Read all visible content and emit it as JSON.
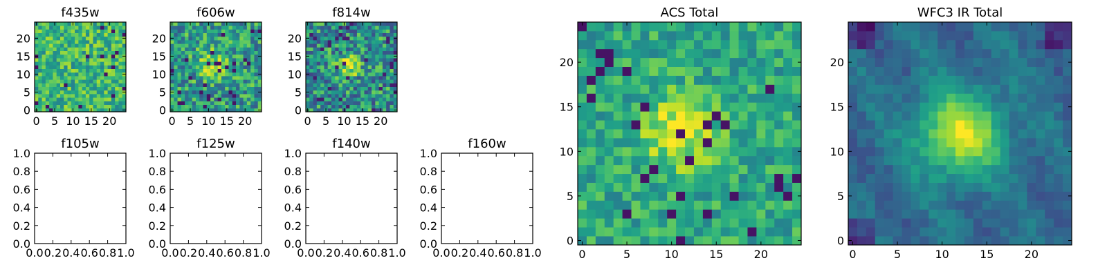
{
  "figure": {
    "background": "#ffffff",
    "colormap": "viridis"
  },
  "chart_data": [
    {
      "type": "heatmap",
      "title": "f435w",
      "size": 25,
      "xlim": [
        -0.5,
        24.5
      ],
      "ylim": [
        -0.5,
        24.5
      ],
      "xticks": [
        0,
        5,
        10,
        15,
        20
      ],
      "yticks": [
        0,
        5,
        10,
        15,
        20
      ],
      "data_pattern": "noisy cutout, no clear source"
    },
    {
      "type": "heatmap",
      "title": "f606w",
      "size": 25,
      "xlim": [
        -0.5,
        24.5
      ],
      "ylim": [
        -0.5,
        24.5
      ],
      "xticks": [
        0,
        5,
        10,
        15,
        20
      ],
      "yticks": [
        0,
        5,
        10,
        15,
        20
      ],
      "data_pattern": "faint source near (11, 13)"
    },
    {
      "type": "heatmap",
      "title": "f814w",
      "size": 25,
      "xlim": [
        -0.5,
        24.5
      ],
      "ylim": [
        -0.5,
        24.5
      ],
      "xticks": [
        0,
        5,
        10,
        15,
        20
      ],
      "yticks": [
        0,
        5,
        10,
        15,
        20
      ],
      "data_pattern": "compact bright source near (11, 12)"
    },
    {
      "type": "empty",
      "title": "f105w",
      "xlim": [
        0,
        1
      ],
      "ylim": [
        0,
        1
      ],
      "xticks": [
        "0.0",
        "0.2",
        "0.4",
        "0.6",
        "0.8",
        "1.0"
      ],
      "yticks": [
        "0.0",
        "0.2",
        "0.4",
        "0.6",
        "0.8",
        "1.0"
      ]
    },
    {
      "type": "empty",
      "title": "f125w",
      "xlim": [
        0,
        1
      ],
      "ylim": [
        0,
        1
      ],
      "xticks": [
        "0.0",
        "0.2",
        "0.4",
        "0.6",
        "0.8",
        "1.0"
      ],
      "yticks": [
        "0.0",
        "0.2",
        "0.4",
        "0.6",
        "0.8",
        "1.0"
      ]
    },
    {
      "type": "empty",
      "title": "f140w",
      "xlim": [
        0,
        1
      ],
      "ylim": [
        0,
        1
      ],
      "xticks": [
        "0.0",
        "0.2",
        "0.4",
        "0.6",
        "0.8",
        "1.0"
      ],
      "yticks": [
        "0.0",
        "0.2",
        "0.4",
        "0.6",
        "0.8",
        "1.0"
      ]
    },
    {
      "type": "empty",
      "title": "f160w",
      "xlim": [
        0,
        1
      ],
      "ylim": [
        0,
        1
      ],
      "xticks": [
        "0.0",
        "0.2",
        "0.4",
        "0.6",
        "0.8",
        "1.0"
      ],
      "yticks": [
        "0.0",
        "0.2",
        "0.4",
        "0.6",
        "0.8",
        "1.0"
      ]
    },
    {
      "type": "heatmap",
      "title": "ACS Total",
      "size": 25,
      "xlim": [
        -0.5,
        24.5
      ],
      "ylim": [
        -0.5,
        24.5
      ],
      "xticks": [
        0,
        5,
        10,
        15,
        20
      ],
      "yticks": [
        0,
        5,
        10,
        15,
        20
      ],
      "data_pattern": "bright extended source near (11, 12) on noisy background"
    },
    {
      "type": "heatmap",
      "title": "WFC3 IR Total",
      "size": 25,
      "xlim": [
        -0.5,
        24.5
      ],
      "ylim": [
        -0.5,
        24.5
      ],
      "xticks": [
        0,
        5,
        10,
        15,
        20
      ],
      "yticks": [
        0,
        5,
        10,
        15,
        20
      ],
      "data_pattern": "smooth bright source near (12, 12), dark corners"
    }
  ]
}
